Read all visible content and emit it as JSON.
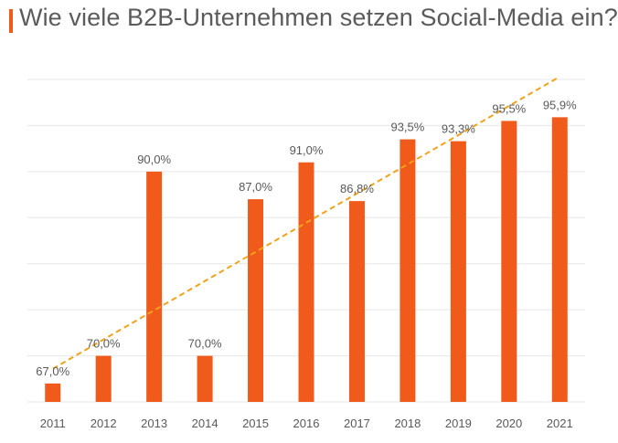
{
  "title": "Wie viele B2B-Unternehmen setzen Social-Media ein?",
  "colors": {
    "accent": "#f05a1a",
    "trend": "#f0a21b",
    "grid": "#e7e7e7",
    "text": "#595959"
  },
  "chart_data": {
    "type": "bar",
    "title": "Wie viele B2B-Unternehmen setzen Social-Media ein?",
    "xlabel": "",
    "ylabel": "",
    "categories": [
      "2011",
      "2012",
      "2013",
      "2014",
      "2015",
      "2016",
      "2017",
      "2018",
      "2019",
      "2020",
      "2021"
    ],
    "values": [
      67.0,
      70.0,
      90.0,
      70.0,
      87.0,
      91.0,
      86.8,
      93.5,
      93.3,
      95.5,
      95.9
    ],
    "data_labels": [
      "67,0%",
      "70,0%",
      "90,0%",
      "70,0%",
      "87,0%",
      "91,0%",
      "86,8%",
      "93,5%",
      "93,3%",
      "95,5%",
      "95,9%"
    ],
    "ylim": [
      65,
      100
    ],
    "grid": true,
    "y_axis_labels_shown": false,
    "legend": "none",
    "trendline": {
      "type": "linear",
      "style": "dashed",
      "start": 68.6,
      "end": 100.3
    }
  }
}
